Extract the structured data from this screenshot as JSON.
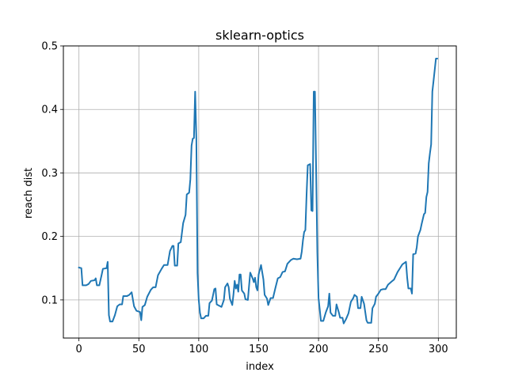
{
  "chart_data": {
    "type": "line",
    "title": "sklearn-optics",
    "xlabel": "index",
    "ylabel": "reach dist",
    "xlim": [
      -13,
      315
    ],
    "ylim": [
      0.04,
      0.5
    ],
    "xticks": [
      0,
      50,
      100,
      150,
      200,
      250,
      300
    ],
    "yticks": [
      0.1,
      0.2,
      0.3,
      0.4,
      0.5
    ],
    "ytick_labels": [
      "0.1",
      "0.2",
      "0.3",
      "0.4",
      "0.5"
    ],
    "grid": true,
    "series": [
      {
        "color": "#1f77b4",
        "points": [
          [
            0,
            0.151
          ],
          [
            2,
            0.15
          ],
          [
            3,
            0.123
          ],
          [
            6,
            0.123
          ],
          [
            8,
            0.125
          ],
          [
            10,
            0.13
          ],
          [
            13,
            0.131
          ],
          [
            14,
            0.134
          ],
          [
            15,
            0.123
          ],
          [
            17,
            0.123
          ],
          [
            19,
            0.14
          ],
          [
            20,
            0.149
          ],
          [
            23,
            0.15
          ],
          [
            24,
            0.16
          ],
          [
            25,
            0.076
          ],
          [
            26,
            0.066
          ],
          [
            28,
            0.066
          ],
          [
            30,
            0.076
          ],
          [
            32,
            0.09
          ],
          [
            34,
            0.093
          ],
          [
            36,
            0.093
          ],
          [
            37,
            0.106
          ],
          [
            40,
            0.106
          ],
          [
            42,
            0.108
          ],
          [
            44,
            0.112
          ],
          [
            46,
            0.09
          ],
          [
            48,
            0.083
          ],
          [
            51,
            0.081
          ],
          [
            52,
            0.068
          ],
          [
            53,
            0.089
          ],
          [
            55,
            0.092
          ],
          [
            57,
            0.105
          ],
          [
            60,
            0.116
          ],
          [
            62,
            0.12
          ],
          [
            64,
            0.12
          ],
          [
            66,
            0.139
          ],
          [
            69,
            0.149
          ],
          [
            71,
            0.155
          ],
          [
            74,
            0.155
          ],
          [
            76,
            0.177
          ],
          [
            78,
            0.185
          ],
          [
            79,
            0.185
          ],
          [
            80,
            0.154
          ],
          [
            82,
            0.154
          ],
          [
            83,
            0.189
          ],
          [
            85,
            0.191
          ],
          [
            87,
            0.221
          ],
          [
            89,
            0.234
          ],
          [
            90,
            0.266
          ],
          [
            92,
            0.269
          ],
          [
            93,
            0.29
          ],
          [
            94,
            0.343
          ],
          [
            95,
            0.354
          ],
          [
            96,
            0.355
          ],
          [
            97,
            0.428
          ],
          [
            98,
            0.355
          ],
          [
            99,
            0.142
          ],
          [
            100,
            0.1
          ],
          [
            101,
            0.08
          ],
          [
            102,
            0.071
          ],
          [
            104,
            0.071
          ],
          [
            106,
            0.075
          ],
          [
            108,
            0.075
          ],
          [
            109,
            0.095
          ],
          [
            111,
            0.099
          ],
          [
            112,
            0.108
          ],
          [
            113,
            0.117
          ],
          [
            114,
            0.118
          ],
          [
            115,
            0.093
          ],
          [
            117,
            0.091
          ],
          [
            119,
            0.089
          ],
          [
            121,
            0.1
          ],
          [
            122,
            0.12
          ],
          [
            124,
            0.126
          ],
          [
            125,
            0.12
          ],
          [
            126,
            0.102
          ],
          [
            128,
            0.092
          ],
          [
            129,
            0.109
          ],
          [
            130,
            0.13
          ],
          [
            131,
            0.118
          ],
          [
            132,
            0.124
          ],
          [
            133,
            0.113
          ],
          [
            134,
            0.14
          ],
          [
            135,
            0.14
          ],
          [
            136,
            0.115
          ],
          [
            138,
            0.11
          ],
          [
            139,
            0.101
          ],
          [
            141,
            0.1
          ],
          [
            142,
            0.122
          ],
          [
            143,
            0.143
          ],
          [
            145,
            0.134
          ],
          [
            146,
            0.128
          ],
          [
            147,
            0.135
          ],
          [
            148,
            0.12
          ],
          [
            149,
            0.115
          ],
          [
            150,
            0.14
          ],
          [
            152,
            0.155
          ],
          [
            154,
            0.132
          ],
          [
            155,
            0.108
          ],
          [
            157,
            0.102
          ],
          [
            158,
            0.092
          ],
          [
            160,
            0.103
          ],
          [
            162,
            0.103
          ],
          [
            164,
            0.119
          ],
          [
            166,
            0.134
          ],
          [
            168,
            0.136
          ],
          [
            170,
            0.144
          ],
          [
            172,
            0.145
          ],
          [
            174,
            0.157
          ],
          [
            177,
            0.163
          ],
          [
            179,
            0.165
          ],
          [
            182,
            0.164
          ],
          [
            185,
            0.165
          ],
          [
            186,
            0.176
          ],
          [
            187,
            0.194
          ],
          [
            188,
            0.207
          ],
          [
            189,
            0.21
          ],
          [
            190,
            0.265
          ],
          [
            191,
            0.312
          ],
          [
            193,
            0.314
          ],
          [
            194,
            0.241
          ],
          [
            195,
            0.24
          ],
          [
            196,
            0.428
          ],
          [
            197,
            0.428
          ],
          [
            198,
            0.305
          ],
          [
            199,
            0.175
          ],
          [
            200,
            0.103
          ],
          [
            202,
            0.067
          ],
          [
            204,
            0.067
          ],
          [
            206,
            0.08
          ],
          [
            207,
            0.085
          ],
          [
            208,
            0.09
          ],
          [
            209,
            0.11
          ],
          [
            210,
            0.08
          ],
          [
            212,
            0.075
          ],
          [
            214,
            0.075
          ],
          [
            215,
            0.093
          ],
          [
            217,
            0.08
          ],
          [
            218,
            0.072
          ],
          [
            220,
            0.072
          ],
          [
            221,
            0.063
          ],
          [
            223,
            0.07
          ],
          [
            225,
            0.079
          ],
          [
            227,
            0.097
          ],
          [
            229,
            0.103
          ],
          [
            230,
            0.108
          ],
          [
            232,
            0.105
          ],
          [
            233,
            0.087
          ],
          [
            235,
            0.087
          ],
          [
            236,
            0.105
          ],
          [
            238,
            0.094
          ],
          [
            240,
            0.068
          ],
          [
            241,
            0.064
          ],
          [
            244,
            0.064
          ],
          [
            245,
            0.087
          ],
          [
            247,
            0.094
          ],
          [
            248,
            0.105
          ],
          [
            250,
            0.11
          ],
          [
            252,
            0.116
          ],
          [
            254,
            0.117
          ],
          [
            256,
            0.117
          ],
          [
            258,
            0.124
          ],
          [
            261,
            0.129
          ],
          [
            263,
            0.132
          ],
          [
            266,
            0.144
          ],
          [
            268,
            0.15
          ],
          [
            270,
            0.156
          ],
          [
            273,
            0.16
          ],
          [
            274,
            0.135
          ],
          [
            275,
            0.118
          ],
          [
            277,
            0.118
          ],
          [
            278,
            0.11
          ],
          [
            279,
            0.172
          ],
          [
            281,
            0.173
          ],
          [
            282,
            0.183
          ],
          [
            283,
            0.2
          ],
          [
            285,
            0.21
          ],
          [
            286,
            0.219
          ],
          [
            288,
            0.235
          ],
          [
            289,
            0.237
          ],
          [
            290,
            0.262
          ],
          [
            291,
            0.27
          ],
          [
            292,
            0.315
          ],
          [
            293,
            0.331
          ],
          [
            294,
            0.345
          ],
          [
            295,
            0.428
          ],
          [
            296,
            0.445
          ],
          [
            298,
            0.48
          ],
          [
            299,
            0.48
          ]
        ]
      }
    ]
  }
}
